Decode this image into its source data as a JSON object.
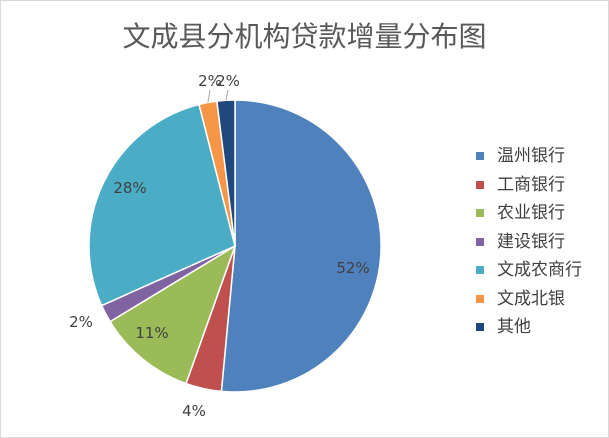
{
  "chart_data": {
    "type": "pie",
    "title": "文成县分机构贷款增量分布图",
    "categories": [
      "温州银行",
      "工商银行",
      "农业银行",
      "建设银行",
      "文成农商行",
      "文成北银",
      "其他"
    ],
    "values": [
      52,
      4,
      11,
      2,
      28,
      2,
      2
    ],
    "value_suffix": "%",
    "colors": [
      "#4F81BD",
      "#C0504D",
      "#9BBB59",
      "#8064A2",
      "#4BACC6",
      "#F79646",
      "#1F497D"
    ],
    "legend": "right",
    "direction": "clockwise from top"
  }
}
